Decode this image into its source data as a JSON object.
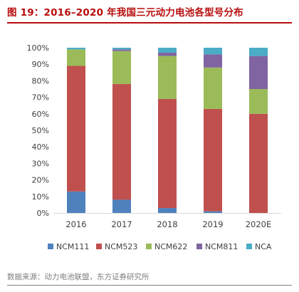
{
  "figure": {
    "title": "图 19：2016–2020 年我国三元动力电池各型号分布",
    "source": "数据来源：动力电池联盟，东方证券研究所"
  },
  "colors": {
    "title": "#b80d0d",
    "NCM111": "#4f81bd",
    "NCM523": "#c0504d",
    "NCM622": "#9bbb59",
    "NCM811": "#8064a2",
    "NCA": "#4bacc6"
  },
  "chart_data": {
    "type": "bar",
    "stacked": true,
    "categories": [
      "2016",
      "2017",
      "2018",
      "2019",
      "2020E"
    ],
    "series": [
      {
        "name": "NCM111",
        "color": "#4f81bd",
        "values": [
          13,
          8,
          3,
          1,
          0
        ]
      },
      {
        "name": "NCM523",
        "color": "#c0504d",
        "values": [
          76,
          70,
          66,
          62,
          60
        ]
      },
      {
        "name": "NCM622",
        "color": "#9bbb59",
        "values": [
          10,
          20,
          26,
          25,
          15
        ]
      },
      {
        "name": "NCM811",
        "color": "#8064a2",
        "values": [
          0,
          1,
          2,
          8,
          20
        ]
      },
      {
        "name": "NCA",
        "color": "#4bacc6",
        "values": [
          1,
          1,
          3,
          4,
          5
        ]
      }
    ],
    "ylim": [
      0,
      100
    ],
    "yticks": [
      "0%",
      "10%",
      "20%",
      "30%",
      "40%",
      "50%",
      "60%",
      "70%",
      "80%",
      "90%",
      "100%"
    ],
    "grid": false,
    "legend": "bottom"
  }
}
